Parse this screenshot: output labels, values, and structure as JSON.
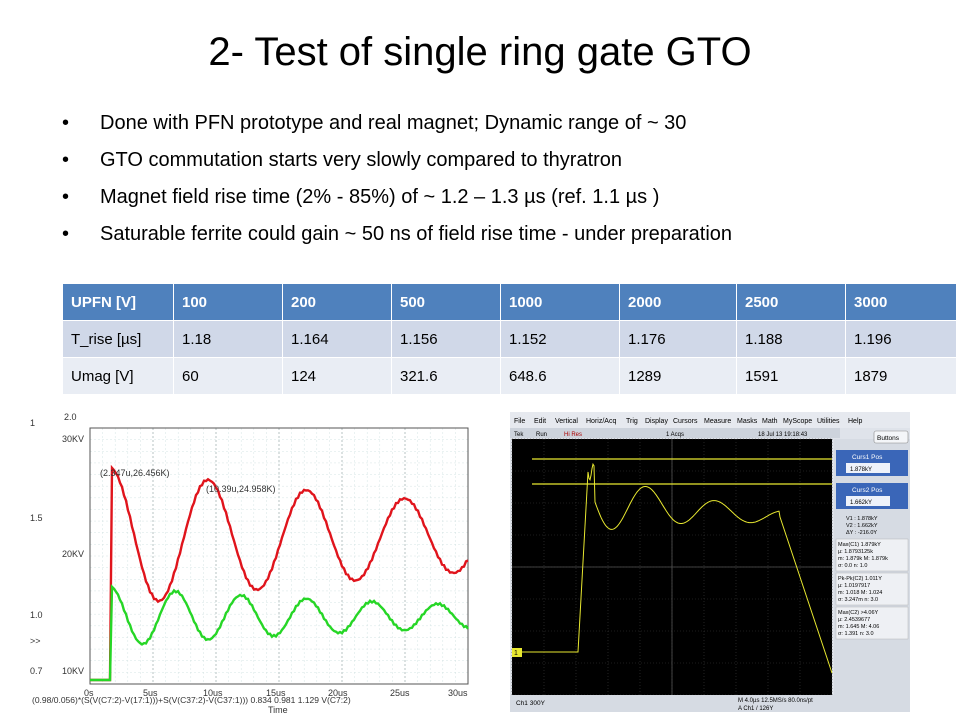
{
  "slide": {
    "title": "2- Test of single ring gate GTO",
    "bullets": [
      "Done with PFN prototype and real magnet; Dynamic range of ~ 30",
      "GTO commutation starts very slowly compared to thyratron",
      "Magnet field rise time (2% - 85%) of ~ 1.2 – 1.3 µs (ref. 1.1 µs )",
      "Saturable ferrite could gain ~ 50 ns of field rise time - under preparation"
    ]
  },
  "table": {
    "header": [
      "UPFN [V]",
      "100",
      "200",
      "500",
      "1000",
      "2000",
      "2500",
      "3000"
    ],
    "rows": [
      [
        "T_rise [µs]",
        "1.18",
        "1.164",
        "1.156",
        "1.152",
        "1.176",
        "1.188",
        "1.196"
      ],
      [
        "Umag [V]",
        "60",
        "124",
        "321.6",
        "648.6",
        "1289",
        "1591",
        "1879"
      ]
    ]
  },
  "left_plot": {
    "y_left_ticks": [
      "1",
      "1.5",
      "1.0",
      "0.7"
    ],
    "y_mid_ticks": [
      "2.0",
      "30KV",
      "20KV",
      "10KV"
    ],
    "x_ticks": [
      "0s",
      "5us",
      "10us",
      "15us",
      "20us",
      "25us",
      "30us"
    ],
    "x_label": "Time",
    "annotation1": "(2.347u,26.456K)",
    "annotation2": "(10.39u,24.958K)",
    "legend": "(0.98/0.056)*(S(V(C7:2)-V(17:1)))+S(V(C37:2)-V(C37:1)))  0.834  0.981  1.129  V(C7:2)",
    "overflow_mark": ">>",
    "colors": {
      "red": "#e0141c",
      "green": "#26d626"
    }
  },
  "scope": {
    "menu": [
      "File",
      "Edit",
      "Vertical",
      "Horiz/Acq",
      "Trig",
      "Display",
      "Cursors",
      "Measure",
      "Masks",
      "Math",
      "MyScope",
      "Utilities",
      "Help"
    ],
    "status": {
      "brand": "Tek",
      "run": "Run",
      "mode": "Hi Res",
      "acqs": "1 Acqs",
      "date": "18 Jul 13 19:18:43"
    },
    "buttons_label": "Buttons",
    "curs1_label": "Curs1 Pos",
    "curs1_value": "1.878kY",
    "curs2_label": "Curs2 Pos",
    "curs2_value": "1.662kY",
    "readout": [
      "V1 :   1.878kY",
      "V2 :   1.662kY",
      "ΔY :   -216.0Y"
    ],
    "meas1": [
      "Max(C1)      1.879kY",
      "µ: 1.8793125k",
      "m: 1.879k    M: 1.879k",
      "σ: 0.0        n: 1.0"
    ],
    "meas2": [
      "Pk-Pk(C2)    1.011Y",
      "µ: 1.0197917",
      "m: 1.018     M: 1.024",
      "σ: 3.247m     n: 3.0"
    ],
    "meas3": [
      "Max(C2)      >4.06Y",
      "µ: 2.4539677",
      "m: 1.645     M: 4.06",
      "σ: 1.391      n: 3.0"
    ],
    "ch_marker": "1",
    "bottom_left": "Ch1   300Y",
    "bottom_mid1": "M 4.0µs  12.5MS/s     80.0ns/pt",
    "bottom_mid2": "A  Ch1  /  126Y",
    "colors": {
      "bg": "#000000",
      "grid": "#3a3a3a",
      "trace": "#e8e830",
      "panel": "#dfe3ea"
    }
  }
}
